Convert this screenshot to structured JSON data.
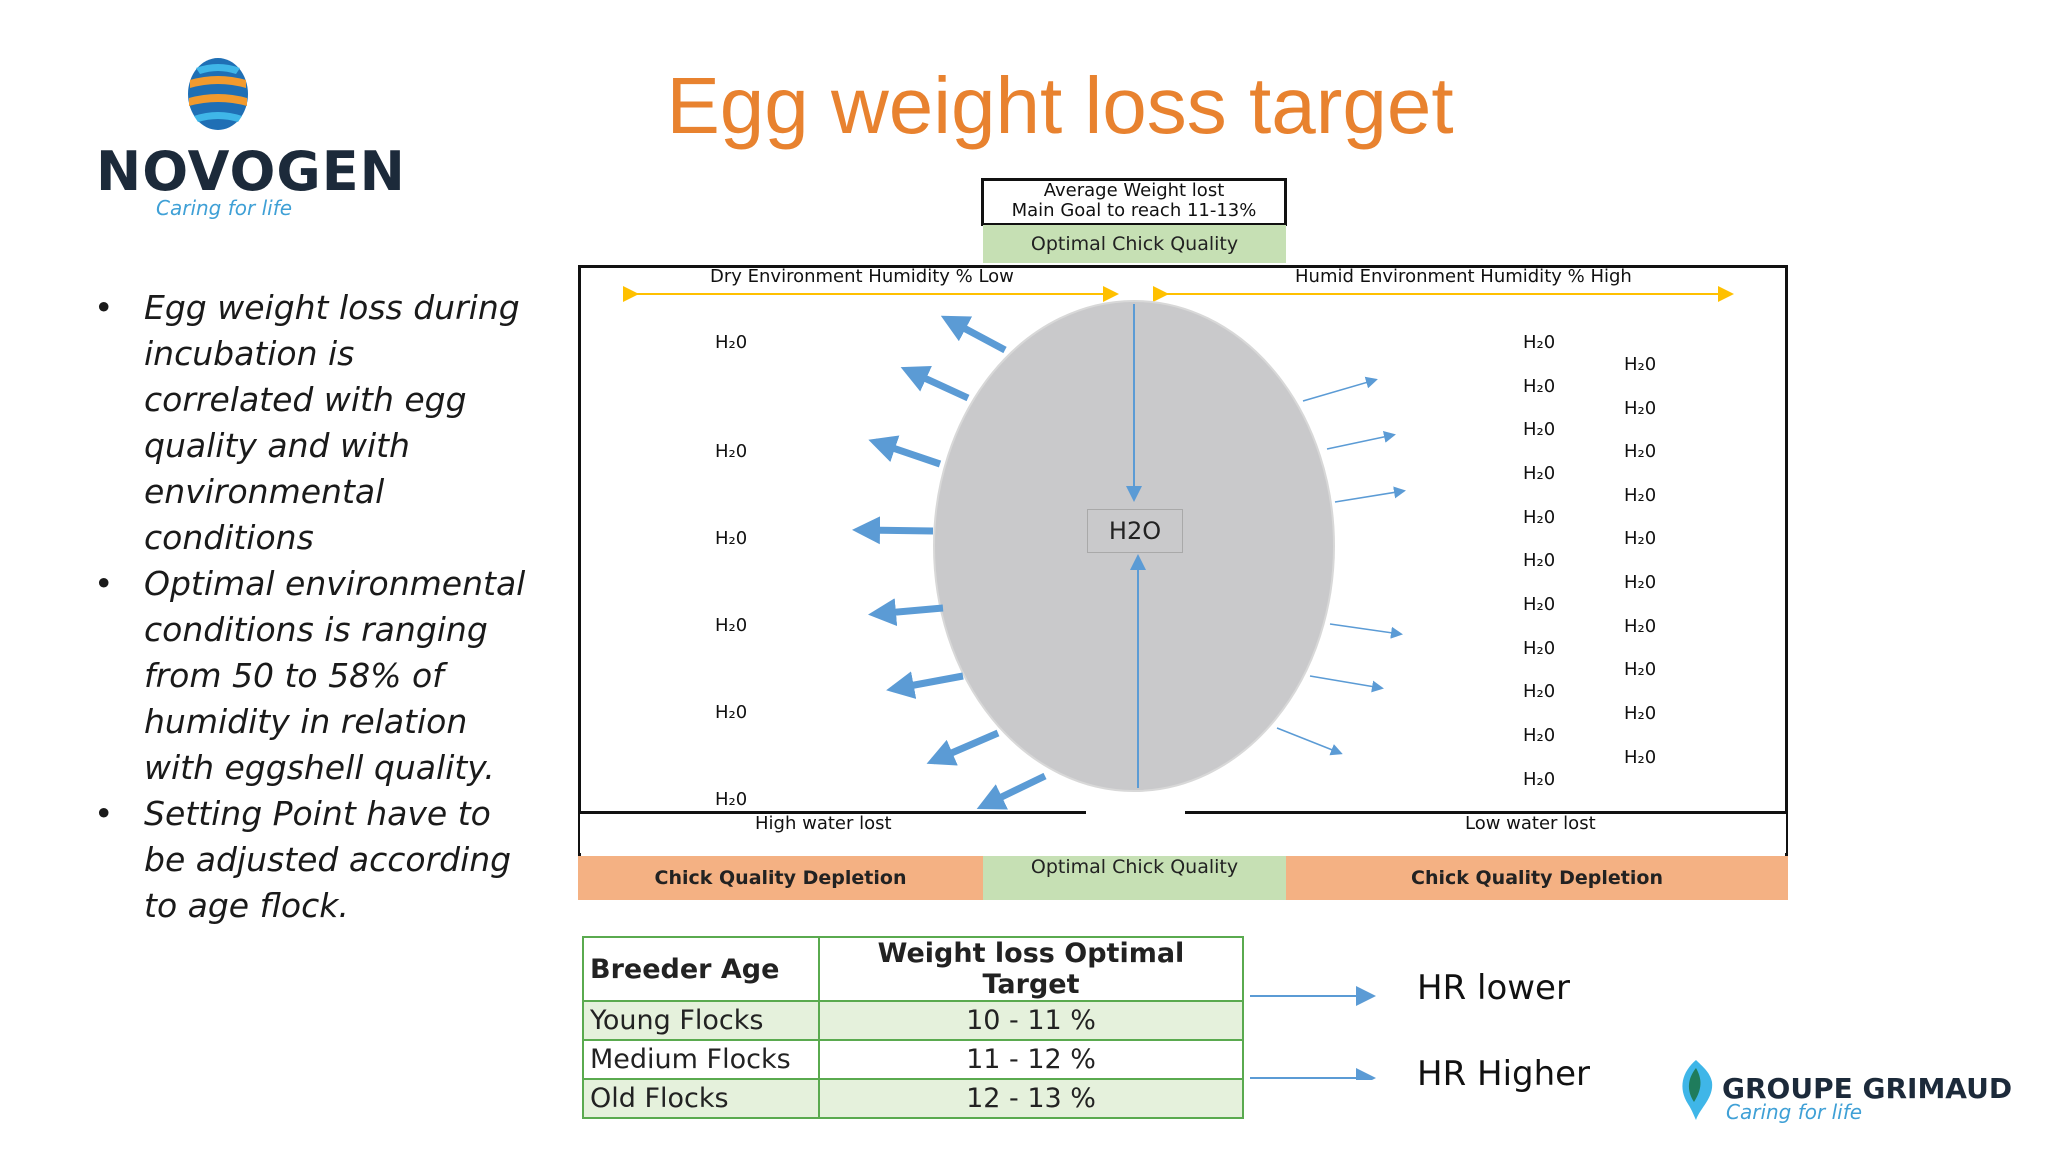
{
  "slide": {
    "title": "Egg weight loss target",
    "logo": {
      "name": "NOVOGEN",
      "tagline": "Caring for life"
    },
    "partner_logo": {
      "name": "GROUPE GRIMAUD",
      "tagline": "Caring for life"
    }
  },
  "bullets": [
    "Egg weight loss during incubation is correlated with egg quality and with environmental conditions",
    "Optimal environmental conditions is ranging from 50 to 58% of humidity in relation with eggshell quality.",
    "Setting Point have to be adjusted according to age flock."
  ],
  "diagram": {
    "top_box_line1": "Average Weight lost",
    "top_box_line2": "Main Goal to reach 11-13%",
    "top_quality": "Optimal Chick Quality",
    "dry_label": "Dry Environment Humidity % Low",
    "humid_label": "Humid Environment Humidity % High",
    "egg_label": "H2O",
    "water_label": "H₂0",
    "high_loss": "High water lost",
    "low_loss": "Low water lost",
    "bottom_left": "Chick Quality Depletion",
    "bottom_mid": "Optimal Chick Quality",
    "bottom_right": "Chick Quality Depletion"
  },
  "table": {
    "headers": [
      "Breeder Age",
      "Weight loss Optimal Target"
    ],
    "rows": [
      [
        "Young Flocks",
        "10 - 11 %"
      ],
      [
        "Medium Flocks",
        "11 - 12 %"
      ],
      [
        "Old Flocks",
        "12 - 13 %"
      ]
    ]
  },
  "hr_notes": {
    "lower": "HR lower",
    "higher": "HR Higher"
  },
  "colors": {
    "title": "#e8822f",
    "green": "#c6e0b4",
    "orange": "#f4b183",
    "egg": "#c9c9cb",
    "arrow": "#5b9bd5",
    "accent_yellow": "#ffc000"
  }
}
